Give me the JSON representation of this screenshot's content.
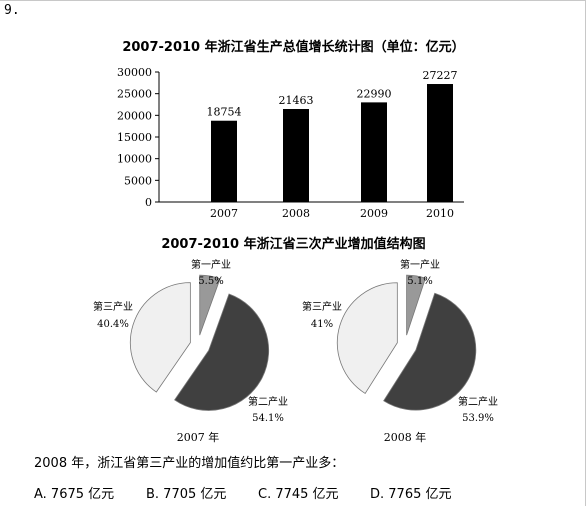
{
  "question_number": "9.",
  "bar_chart_title": "2007-2010 年浙江省生产总值增长统计图（单位：亿元）",
  "pie_chart_title": "2007-2010 年浙江省三次产业增加值结构图",
  "chart_data": [
    {
      "type": "bar",
      "title": "2007-2010 年浙江省生产总值增长统计图（单位：亿元）",
      "categories": [
        "2007",
        "2008",
        "2009",
        "2010"
      ],
      "values": [
        18754,
        21463,
        22990,
        27227
      ],
      "ylim": [
        0,
        30000
      ],
      "yticks": [
        0,
        5000,
        10000,
        15000,
        20000,
        25000,
        30000
      ],
      "xlabel": "",
      "ylabel": "",
      "grid": false,
      "bar_color": "#000000"
    },
    {
      "type": "pie",
      "title": "2007 年",
      "slices": [
        {
          "name": "第一产业",
          "value": 5.5,
          "label": "5.5%",
          "color": "#999999"
        },
        {
          "name": "第二产业",
          "value": 54.1,
          "label": "54.1%",
          "color": "#404040"
        },
        {
          "name": "第三产业",
          "value": 40.4,
          "label": "40.4%",
          "color": "#f0f0f0"
        }
      ]
    },
    {
      "type": "pie",
      "title": "2008 年",
      "slices": [
        {
          "name": "第一产业",
          "value": 5.1,
          "label": "5.1%",
          "color": "#999999"
        },
        {
          "name": "第二产业",
          "value": 53.9,
          "label": "53.9%",
          "color": "#404040"
        },
        {
          "name": "第三产业",
          "value": 41,
          "label": "41%",
          "color": "#f0f0f0"
        }
      ]
    }
  ],
  "question_text": "2008 年，浙江省第三产业的增加值约比第一产业多：",
  "options": [
    "A. 7675 亿元",
    "B. 7705 亿元",
    "C. 7745 亿元",
    "D. 7765 亿元"
  ]
}
